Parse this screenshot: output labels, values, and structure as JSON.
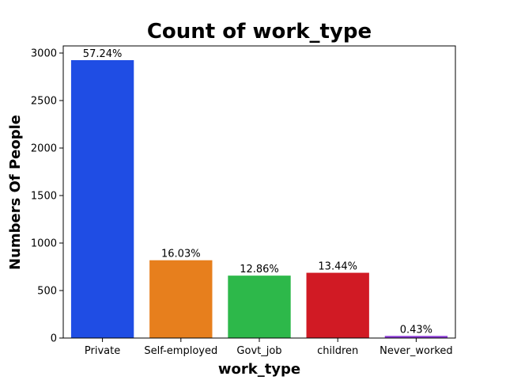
{
  "chart_data": {
    "type": "bar",
    "title": "Count of work_type",
    "xlabel": "work_type",
    "ylabel": "Numbers Of People",
    "categories": [
      "Private",
      "Self-employed",
      "Govt_job",
      "children",
      "Never_worked"
    ],
    "values": [
      2925,
      819,
      657,
      687,
      22
    ],
    "data_labels": [
      "57.24%",
      "16.03%",
      "12.86%",
      "13.44%",
      "0.43%"
    ],
    "colors": [
      "#1f4de4",
      "#e77f1d",
      "#2db84a",
      "#d11a24",
      "#8a38d6"
    ],
    "ylim": [
      0,
      3075
    ],
    "yticks": [
      0,
      500,
      1000,
      1500,
      2000,
      2500,
      3000
    ],
    "grid": false,
    "legend": "none"
  }
}
